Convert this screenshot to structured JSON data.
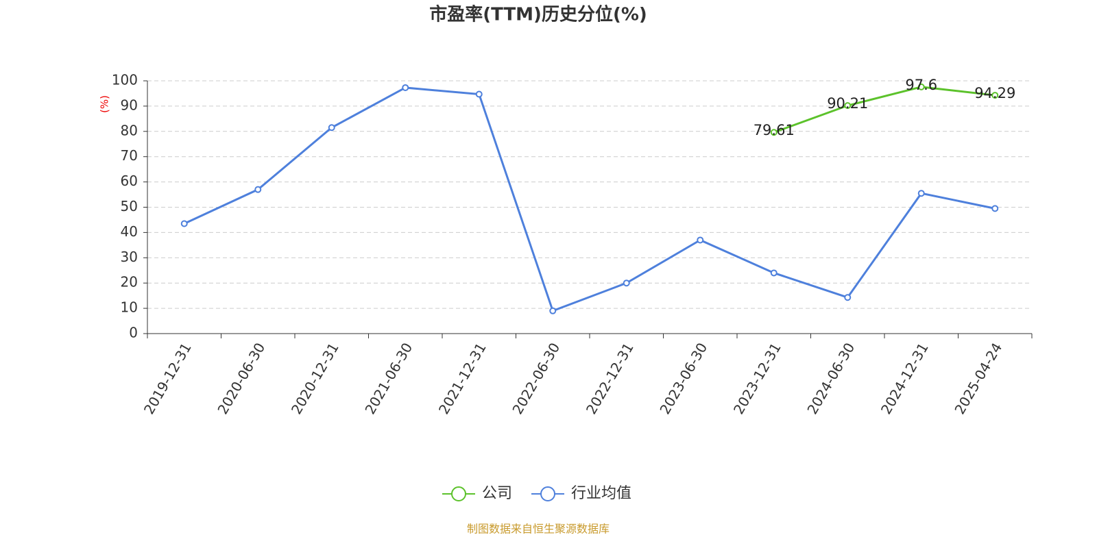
{
  "chart_data": {
    "type": "line",
    "title": "市盈率(TTM)历史分位(%)",
    "y_label": "(%)",
    "source": "制图数据来自恒生聚源数据库",
    "categories": [
      "2019-12-31",
      "2020-06-30",
      "2020-12-31",
      "2021-06-30",
      "2021-12-31",
      "2022-06-30",
      "2022-12-31",
      "2023-06-30",
      "2023-12-31",
      "2024-06-30",
      "2024-12-31",
      "2025-04-24"
    ],
    "series": [
      {
        "name": "公司",
        "color": "#5cc22b",
        "data_labels": true,
        "values": [
          null,
          null,
          null,
          null,
          null,
          null,
          null,
          null,
          79.61,
          90.21,
          97.6,
          94.29
        ]
      },
      {
        "name": "行业均值",
        "color": "#4e80dc",
        "data_labels": false,
        "values": [
          43.5,
          57,
          81.5,
          97.3,
          94.7,
          9,
          20,
          37,
          24,
          14.3,
          55.5,
          49.5
        ]
      }
    ],
    "ylim": [
      0,
      100
    ],
    "yticks": [
      0,
      10,
      20,
      30,
      40,
      50,
      60,
      70,
      80,
      90,
      100
    ],
    "grid": true
  }
}
